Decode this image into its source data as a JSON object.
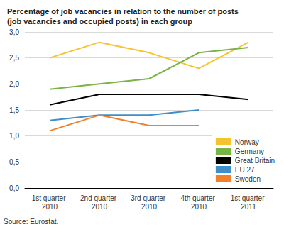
{
  "chart_data": {
    "type": "line",
    "title": "Percentage of job vacancies in relation to the number of posts (job vacancies and occupied posts) in each group",
    "source": "Source: Eurostat.",
    "categories": [
      "1st quarter 2010",
      "2nd quarter 2010",
      "3rd quarter 2010",
      "4th quarter 2010",
      "1st quarter 2011"
    ],
    "series": [
      {
        "name": "Norway",
        "color": "#f6c330",
        "values": [
          2.5,
          2.8,
          2.6,
          2.3,
          2.8
        ]
      },
      {
        "name": "Germany",
        "color": "#78b443",
        "values": [
          1.9,
          2.0,
          2.1,
          2.6,
          2.7
        ]
      },
      {
        "name": "Great Britain",
        "color": "#000000",
        "values": [
          1.6,
          1.8,
          1.8,
          1.8,
          1.7
        ]
      },
      {
        "name": "EU 27",
        "color": "#3d8ec9",
        "values": [
          1.3,
          1.4,
          1.4,
          1.5,
          null
        ]
      },
      {
        "name": "Sweden",
        "color": "#f0802a",
        "values": [
          1.1,
          1.4,
          1.2,
          1.2,
          null
        ]
      }
    ],
    "ylim": [
      0,
      3
    ],
    "yticks": [
      {
        "value": 0,
        "label": "0,0"
      },
      {
        "value": 0.5,
        "label": "0,5"
      },
      {
        "value": 1,
        "label": "1,0"
      },
      {
        "value": 1.5,
        "label": "1,5"
      },
      {
        "value": 2,
        "label": "2,0"
      },
      {
        "value": 2.5,
        "label": "2,5"
      },
      {
        "value": 3,
        "label": "3,0"
      }
    ],
    "grid": true,
    "legend": "lower right",
    "marker": "none"
  }
}
